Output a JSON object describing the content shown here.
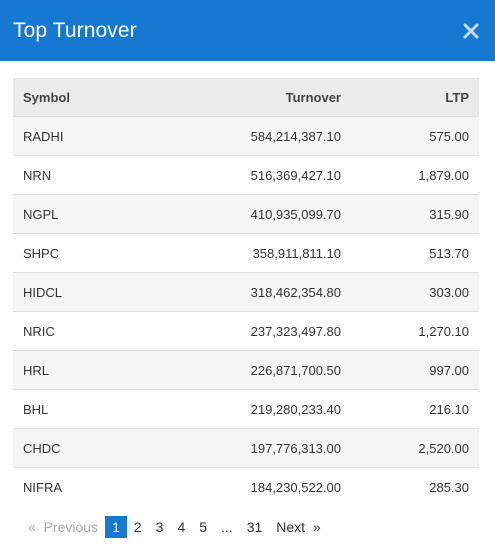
{
  "modal": {
    "title": "Top Turnover",
    "close_icon": "close-icon"
  },
  "table": {
    "headers": [
      "Symbol",
      "Turnover",
      "LTP"
    ],
    "rows": [
      [
        "RADHI",
        "584,214,387.10",
        "575.00"
      ],
      [
        "NRN",
        "516,369,427.10",
        "1,879.00"
      ],
      [
        "NGPL",
        "410,935,099.70",
        "315.90"
      ],
      [
        "SHPC",
        "358,911,811.10",
        "513.70"
      ],
      [
        "HIDCL",
        "318,462,354.80",
        "303.00"
      ],
      [
        "NRIC",
        "237,323,497.80",
        "1,270.10"
      ],
      [
        "HRL",
        "226,871,700.50",
        "997.00"
      ],
      [
        "BHL",
        "219,280,233.40",
        "216.10"
      ],
      [
        "CHDC",
        "197,776,313.00",
        "2,520.00"
      ],
      [
        "NIFRA",
        "184,230,522.00",
        "285.30"
      ]
    ]
  },
  "pagination": {
    "prev_arrow": "«",
    "prev": "Previous",
    "pages": [
      "1",
      "2",
      "3",
      "4",
      "5"
    ],
    "ellipsis": "...",
    "last": "31",
    "next": "Next",
    "next_arrow": "»"
  },
  "colors": {
    "header_bg": "#1778d1",
    "active_page_bg": "#1778d1"
  }
}
